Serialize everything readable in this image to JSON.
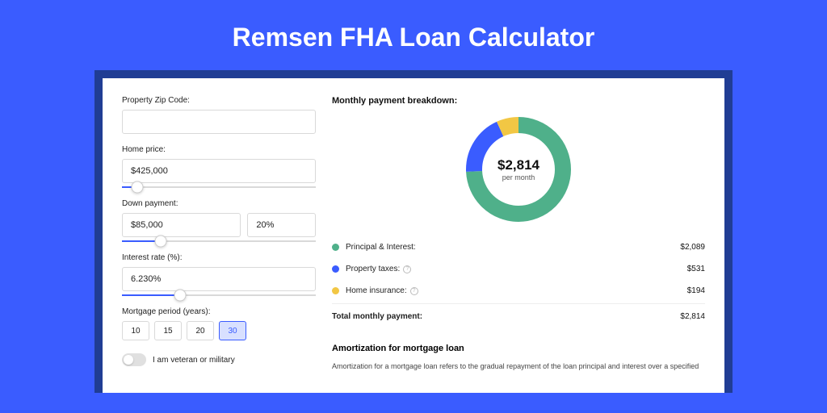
{
  "page": {
    "title": "Remsen FHA Loan Calculator",
    "background_color": "#3a5cff",
    "shell_color": "#203d94",
    "card_color": "#ffffff"
  },
  "form": {
    "zip": {
      "label": "Property Zip Code:",
      "value": ""
    },
    "home_price": {
      "label": "Home price:",
      "value": "$425,000",
      "slider_pct": 8
    },
    "down_payment": {
      "label": "Down payment:",
      "amount": "$85,000",
      "pct": "20%",
      "slider_pct": 20
    },
    "interest_rate": {
      "label": "Interest rate (%):",
      "value": "6.230%",
      "slider_pct": 30
    },
    "mortgage_period": {
      "label": "Mortgage period (years):",
      "options": [
        "10",
        "15",
        "20",
        "30"
      ],
      "selected": "30"
    },
    "veteran": {
      "label": "I am veteran or military",
      "checked": false
    }
  },
  "breakdown": {
    "title": "Monthly payment breakdown:",
    "center_amount": "$2,814",
    "center_sub": "per month",
    "items": [
      {
        "label": "Principal & Interest:",
        "value": "$2,089",
        "color": "#4fb08a",
        "fraction": 0.742,
        "has_info": false
      },
      {
        "label": "Property taxes:",
        "value": "$531",
        "color": "#3a5cff",
        "fraction": 0.189,
        "has_info": true
      },
      {
        "label": "Home insurance:",
        "value": "$194",
        "color": "#f2c744",
        "fraction": 0.069,
        "has_info": true
      }
    ],
    "total_label": "Total monthly payment:",
    "total_value": "$2,814"
  },
  "amortization": {
    "title": "Amortization for mortgage loan",
    "text": "Amortization for a mortgage loan refers to the gradual repayment of the loan principal and interest over a specified"
  },
  "chart_style": {
    "stroke_width": 20,
    "radius": 55,
    "size": 130
  }
}
